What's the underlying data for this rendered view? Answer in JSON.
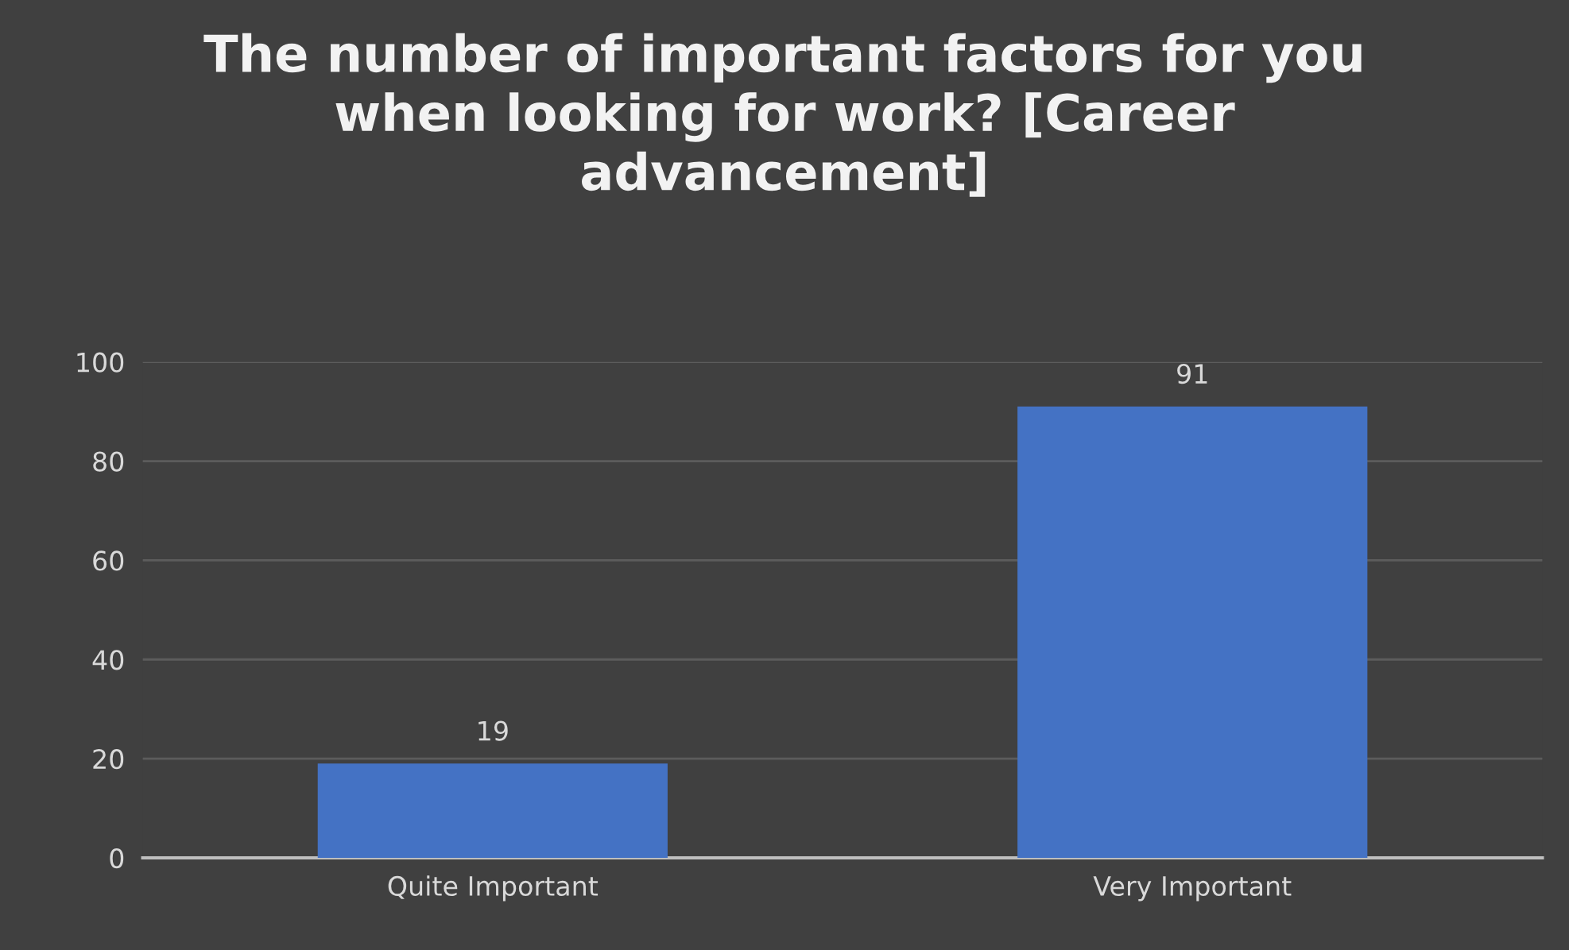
{
  "chart_data": {
    "type": "bar",
    "title": "The number of important factors for you when looking for work? [Career advancement]",
    "categories": [
      "Quite Important",
      "Very Important"
    ],
    "values": [
      19,
      91
    ],
    "color": "#4472c4",
    "ylim": [
      0,
      100
    ],
    "yticks": [
      0,
      20,
      40,
      60,
      80,
      100
    ],
    "grid": "y",
    "data_labels": true
  }
}
